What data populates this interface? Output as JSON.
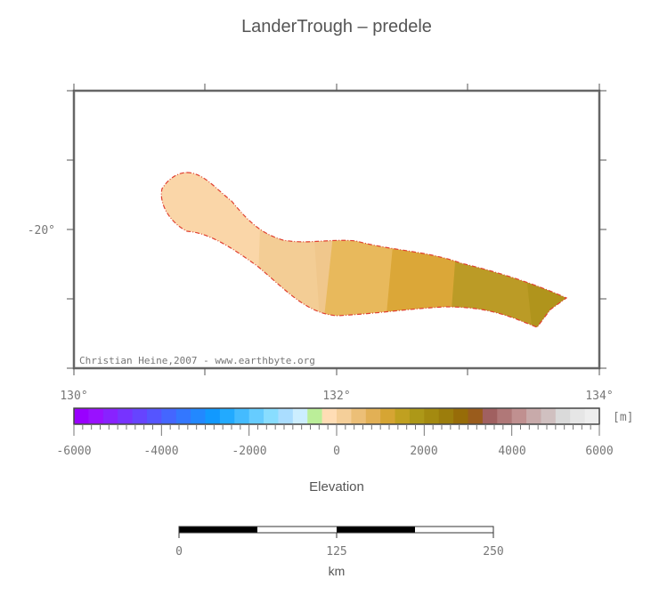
{
  "map": {
    "title": "LanderTrough – predele",
    "credit": "Christian Heine,2007 - www.earthbyte.org",
    "x_ticks": [
      "130°",
      "132°",
      "134°"
    ],
    "y_ticks": [
      "-20°"
    ],
    "outline_color": "#e04030"
  },
  "colorbar": {
    "unit": "[m]",
    "label": "Elevation",
    "tick_labels": [
      "-6000",
      "-4000",
      "-2000",
      "0",
      "2000",
      "4000",
      "6000"
    ],
    "colors": [
      "#9900ff",
      "#9911ff",
      "#8822ff",
      "#7733ff",
      "#6644ff",
      "#5555ff",
      "#4466ff",
      "#3377ff",
      "#2288ff",
      "#1199ff",
      "#22aaff",
      "#44bbff",
      "#66ccff",
      "#88ddff",
      "#aaddff",
      "#cceeff",
      "#bbee99",
      "#ffddb5",
      "#f5cf99",
      "#ecbf77",
      "#e2b055",
      "#d6a533",
      "#c0a020",
      "#ad9818",
      "#a48a10",
      "#9c7d0c",
      "#976c08",
      "#9a5c1c",
      "#a06060",
      "#b07878",
      "#c09090",
      "#c8aaaa",
      "#d0c0c0",
      "#dadada",
      "#e6e6e6",
      "#eeeeee"
    ]
  },
  "scalebar": {
    "unit": "km",
    "tick_labels": [
      "0",
      "125",
      "250"
    ]
  }
}
